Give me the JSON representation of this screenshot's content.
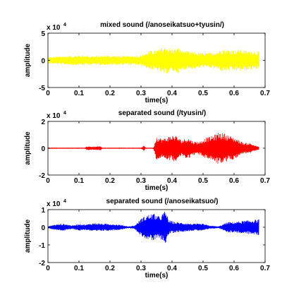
{
  "chart_data": [
    {
      "type": "line",
      "title": "mixed sound (/anoseikatsuo+tyusin/)",
      "xlabel": "time(s)",
      "ylabel": "amplitude",
      "multiplier": "x 10",
      "multiplier_exp": "4",
      "xlim": [
        0,
        0.7
      ],
      "ylim": [
        -5,
        5
      ],
      "xticks": [
        "0",
        "0.1",
        "0.2",
        "0.3",
        "0.4",
        "0.5",
        "0.6",
        "0.7"
      ],
      "yticks": [
        "-5",
        "0",
        "5"
      ],
      "series": [
        {
          "color": "#ffff00",
          "envelope": {
            "t": [
              0.0,
              0.05,
              0.1,
              0.15,
              0.2,
              0.25,
              0.3,
              0.31,
              0.33,
              0.35,
              0.38,
              0.4,
              0.42,
              0.44,
              0.46,
              0.48,
              0.5,
              0.52,
              0.54,
              0.56,
              0.58,
              0.6,
              0.62,
              0.64,
              0.66,
              0.68
            ],
            "a": [
              0.6,
              0.8,
              0.9,
              0.8,
              0.9,
              0.8,
              0.9,
              1.2,
              1.8,
              1.9,
              2.6,
              2.0,
              2.3,
              1.7,
              1.6,
              1.5,
              1.3,
              1.4,
              1.6,
              2.0,
              2.0,
              1.9,
              2.0,
              1.8,
              1.7,
              1.6
            ]
          }
        }
      ]
    },
    {
      "type": "line",
      "title": "separated sound (/tyusin/)",
      "xlabel": "time(s)",
      "ylabel": "amplitude",
      "multiplier": "x 10",
      "multiplier_exp": "4",
      "xlim": [
        0,
        0.7
      ],
      "ylim": [
        -2,
        2
      ],
      "xticks": [
        "0",
        "0.1",
        "0.2",
        "0.3",
        "0.4",
        "0.5",
        "0.6",
        "0.7"
      ],
      "yticks": [
        "-2",
        "0",
        "2"
      ],
      "series": [
        {
          "color": "#ff0000",
          "envelope": {
            "t": [
              0.0,
              0.12,
              0.125,
              0.14,
              0.17,
              0.175,
              0.3,
              0.31,
              0.315,
              0.34,
              0.35,
              0.37,
              0.39,
              0.41,
              0.43,
              0.45,
              0.47,
              0.49,
              0.51,
              0.53,
              0.55,
              0.57,
              0.59,
              0.61,
              0.63,
              0.65,
              0.67,
              0.68
            ],
            "a": [
              0.02,
              0.02,
              0.15,
              0.12,
              0.15,
              0.02,
              0.02,
              0.2,
              0.02,
              0.02,
              0.9,
              0.7,
              0.9,
              1.0,
              0.6,
              0.8,
              0.5,
              0.5,
              0.8,
              0.9,
              1.2,
              1.1,
              0.9,
              0.7,
              0.4,
              0.4,
              0.2,
              0.1
            ]
          }
        }
      ]
    },
    {
      "type": "line",
      "title": "separated sound (/anoseikatsuo/)",
      "xlabel": "time(s)",
      "ylabel": "amplitude",
      "multiplier": "x 10",
      "multiplier_exp": "4",
      "xlim": [
        0,
        0.7
      ],
      "ylim": [
        -2,
        1
      ],
      "xticks": [
        "0",
        "0.1",
        "0.2",
        "0.3",
        "0.4",
        "0.5",
        "0.6",
        "0.7"
      ],
      "yticks": [
        "-2",
        "-1",
        "0",
        "1"
      ],
      "series": [
        {
          "color": "#0000ff",
          "envelope": {
            "t": [
              0.0,
              0.02,
              0.05,
              0.08,
              0.1,
              0.12,
              0.15,
              0.18,
              0.2,
              0.23,
              0.26,
              0.28,
              0.3,
              0.32,
              0.34,
              0.36,
              0.375,
              0.38,
              0.39,
              0.41,
              0.44,
              0.47,
              0.5,
              0.52,
              0.55,
              0.58,
              0.6,
              0.62,
              0.65,
              0.68
            ],
            "a": [
              0.05,
              0.15,
              0.2,
              0.1,
              0.2,
              0.15,
              0.25,
              0.2,
              0.2,
              0.15,
              0.05,
              0.1,
              0.5,
              0.7,
              0.8,
              0.6,
              0.9,
              0.9,
              0.4,
              0.3,
              0.25,
              0.2,
              0.2,
              0.1,
              0.05,
              0.3,
              0.3,
              0.35,
              0.4,
              0.45
            ]
          }
        }
      ]
    }
  ]
}
